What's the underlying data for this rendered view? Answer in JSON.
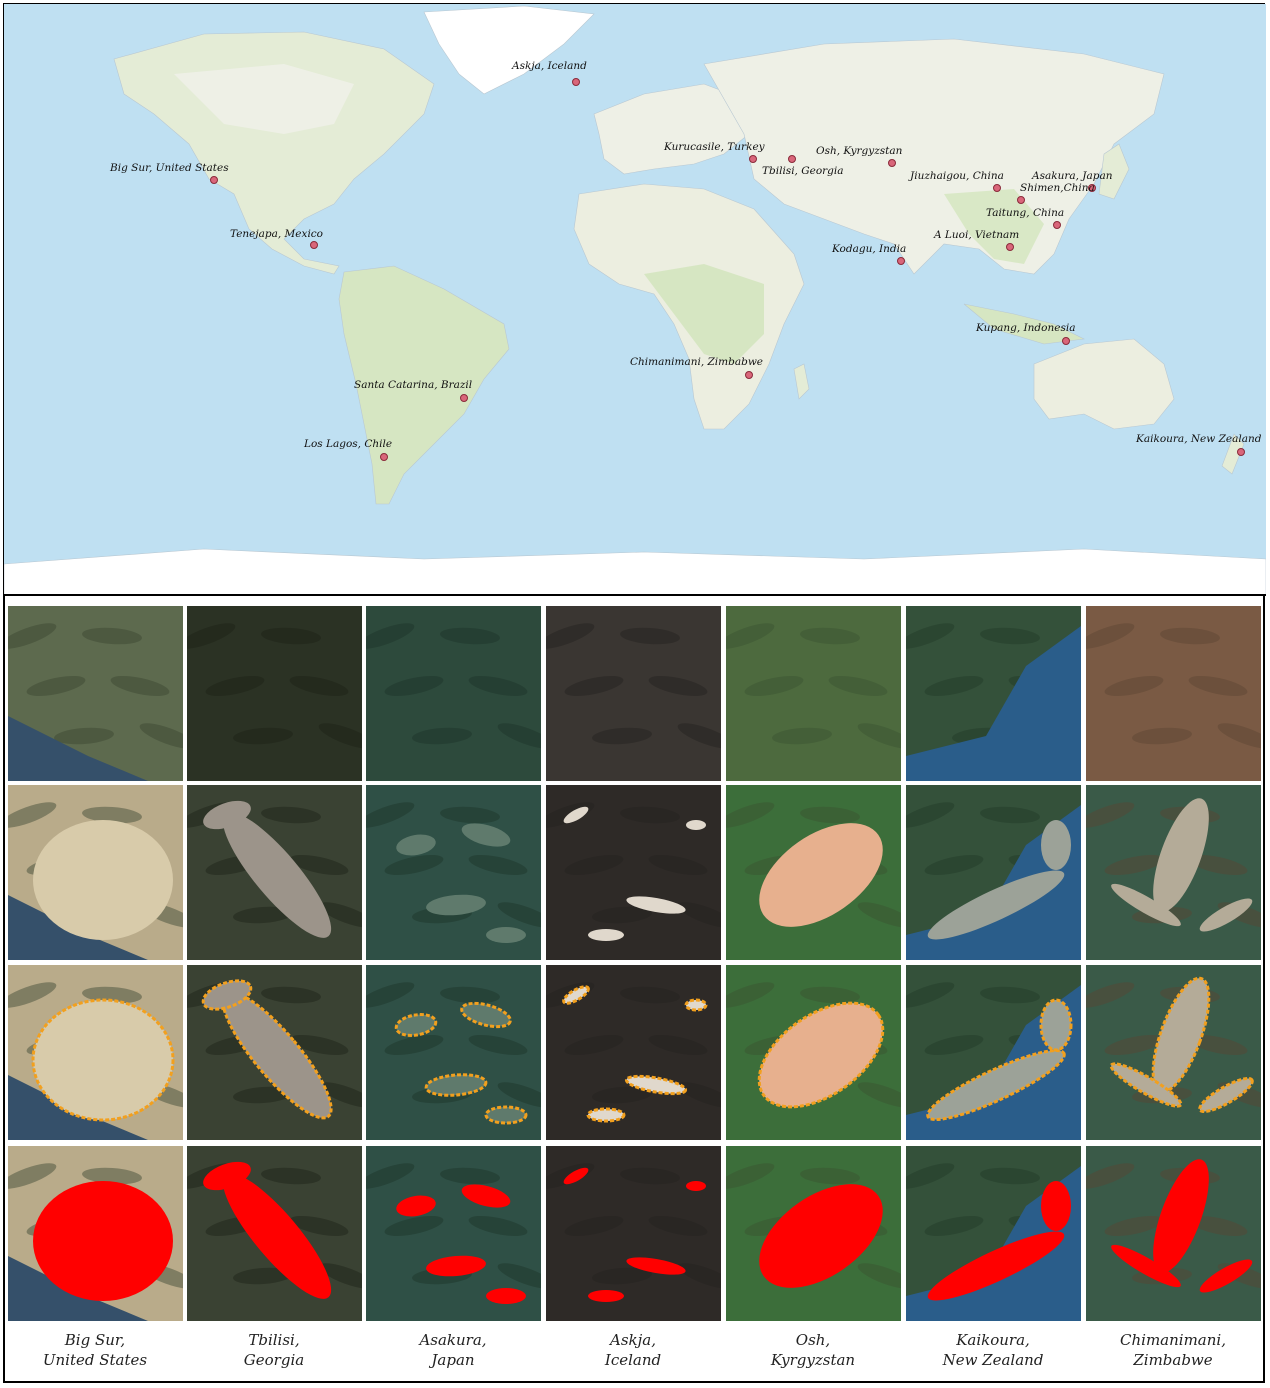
{
  "map": {
    "sites": [
      {
        "label": "Askja, Iceland",
        "id": "askja"
      },
      {
        "label": "Big Sur, United States",
        "id": "bigsur"
      },
      {
        "label": "Kurucasile, Turkey",
        "id": "kurucasile"
      },
      {
        "label": "Tbilisi, Georgia",
        "id": "tbilisi"
      },
      {
        "label": "Osh, Kyrgyzstan",
        "id": "osh"
      },
      {
        "label": "Jiuzhaigou, China",
        "id": "jiuzhaigou"
      },
      {
        "label": "Asakura, Japan",
        "id": "asakura"
      },
      {
        "label": "Shimen,China",
        "id": "shimen"
      },
      {
        "label": "Taitung, China",
        "id": "taitung"
      },
      {
        "label": "Tenejapa, Mexico",
        "id": "tenejapa"
      },
      {
        "label": "Kodagu, India",
        "id": "kodagu"
      },
      {
        "label": "A Luoi, Vietnam",
        "id": "aluoi"
      },
      {
        "label": "Kupang, Indonesia",
        "id": "kupang"
      },
      {
        "label": "Chimanimani, Zimbabwe",
        "id": "chimanimani"
      },
      {
        "label": "Santa Catarina, Brazil",
        "id": "santacatarina"
      },
      {
        "label": "Los Lagos, Chile",
        "id": "loslagos"
      },
      {
        "label": "Kaikoura, New Zealand",
        "id": "kaikoura"
      }
    ],
    "colors": {
      "ocean": "#bfe0f2",
      "land": "#f1f0e8",
      "vegetation": "#d9e8c6",
      "marker": "#d9667a"
    }
  },
  "columns": [
    {
      "line1": "Big Sur,",
      "line2": "United States"
    },
    {
      "line1": "Tbilisi,",
      "line2": "Georgia"
    },
    {
      "line1": "Asakura,",
      "line2": "Japan"
    },
    {
      "line1": "Askja,",
      "line2": "Iceland"
    },
    {
      "line1": "Osh,",
      "line2": "Kyrgyzstan"
    },
    {
      "line1": "Kaikoura,",
      "line2": "New Zealand"
    },
    {
      "line1": "Chimanimani,",
      "line2": "Zimbabwe"
    }
  ],
  "row_types": [
    "pre-event image",
    "post-event image",
    "post-event image with orange outline",
    "post-event image with red mask"
  ],
  "colors": {
    "outline": "#f2a01e",
    "mask": "#ff0000"
  }
}
